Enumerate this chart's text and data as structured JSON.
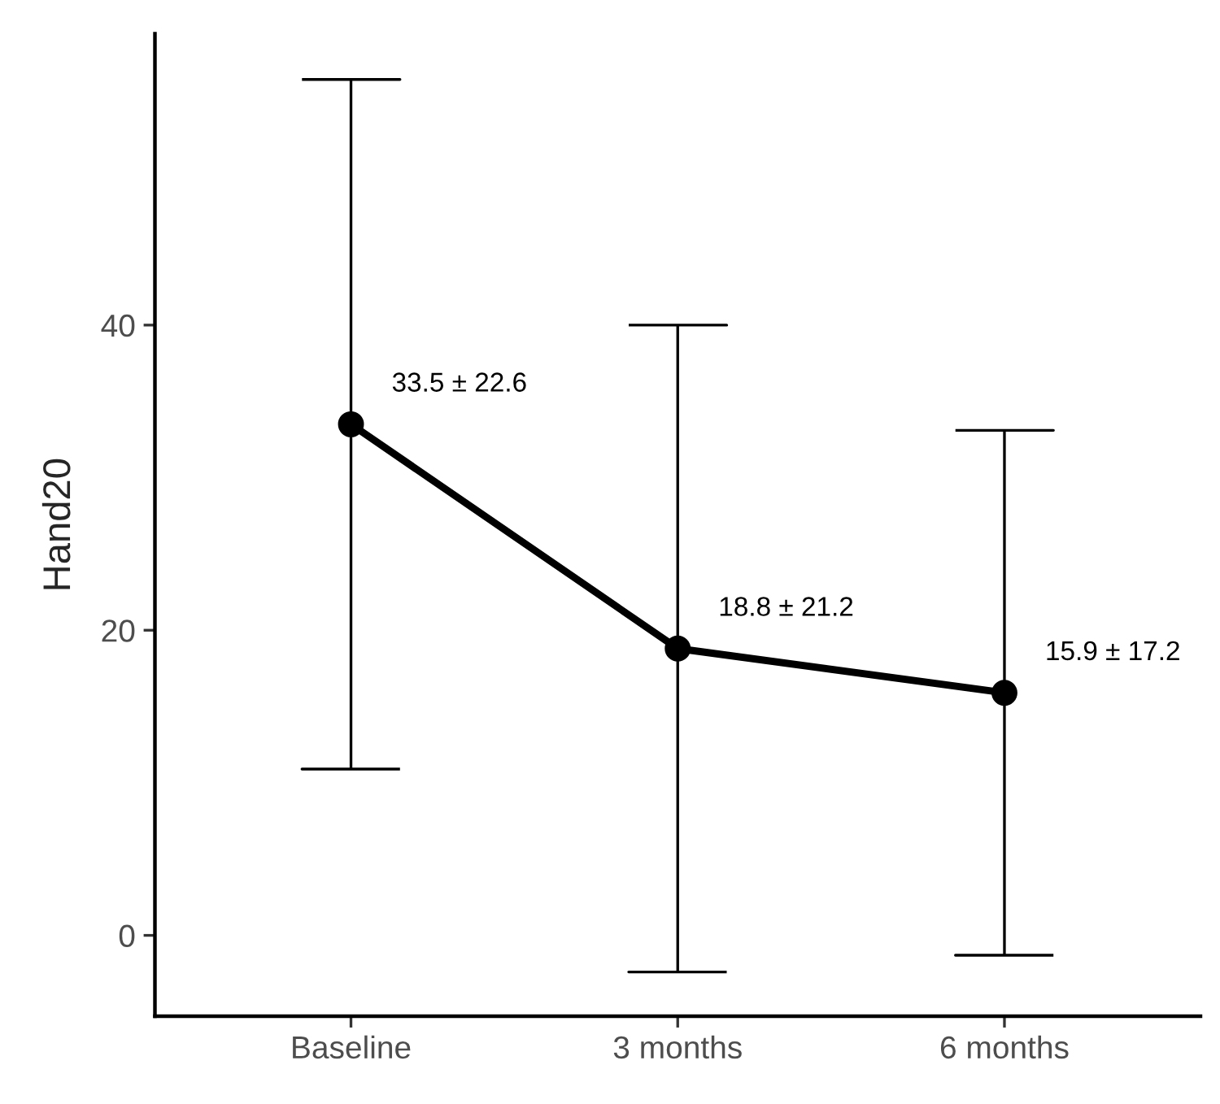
{
  "chart_data": {
    "type": "line",
    "ylabel": "Hand20",
    "categories": [
      "Baseline",
      "3 months",
      "6 months"
    ],
    "values": [
      33.5,
      18.8,
      15.9
    ],
    "errors": [
      22.6,
      21.2,
      17.2
    ],
    "value_labels": [
      "33.5 ± 22.6",
      "18.8 ± 21.2",
      "15.9 ± 17.2"
    ],
    "color": "#000000",
    "marker": "circle",
    "line_style": "solid",
    "ylim": [
      -5.3,
      59.1
    ],
    "yticks": [
      0,
      20,
      40
    ],
    "grid": false
  }
}
